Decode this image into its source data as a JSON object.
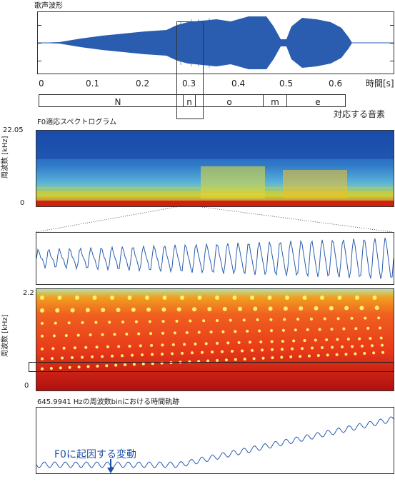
{
  "top": {
    "title": "歌声波形",
    "time_axis_label": "時間[s]",
    "time_ticks": [
      "0",
      "0.1",
      "0.2",
      "0.3",
      "0.4",
      "0.5",
      "0.6"
    ]
  },
  "phonemes": {
    "labels": [
      "N",
      "n",
      "o",
      "m",
      "e"
    ],
    "caption": "対応する音素"
  },
  "spectrogram": {
    "title": "F0適応スペクトログラム",
    "ylabel": "周波数 [kHz]",
    "y_top": "22.05",
    "y_bottom": "0"
  },
  "zoom_spectrogram": {
    "ylabel": "周波数 [kHz]",
    "y_top": "2.2",
    "y_bottom": "0"
  },
  "trajectory": {
    "title": "645.9941 Hzの周波数binにおける時間軌跡",
    "annotation": "F0に起因する変動"
  },
  "colors": {
    "waveform": "#2a5db0",
    "arrow": "#1e4fa8"
  }
}
